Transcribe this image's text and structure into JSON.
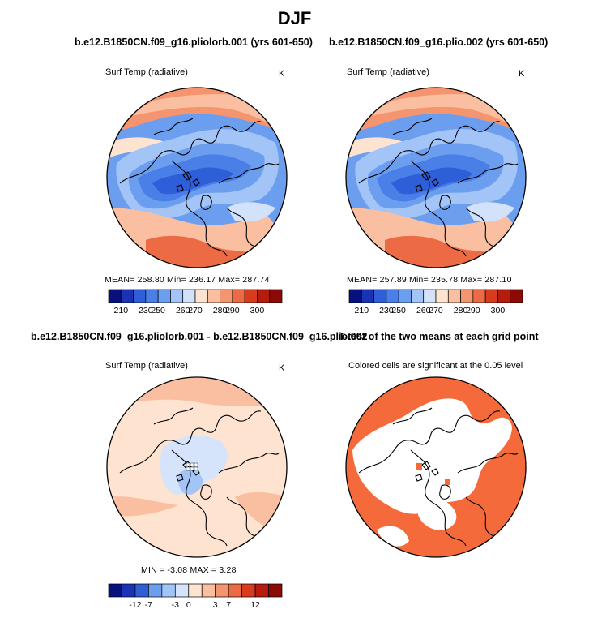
{
  "chart_data": {
    "type": "heatmap",
    "title": "DJF",
    "colors": {
      "warm_scale": [
        "#08107d",
        "#1834b4",
        "#2f5fd8",
        "#4a7fe8",
        "#6c9ef0",
        "#a2c4f6",
        "#d2e2fb",
        "#fde3d0",
        "#f9bfa0",
        "#f59570",
        "#ec6a44",
        "#d93b1f",
        "#b51c0e",
        "#8b0a05"
      ],
      "diff_scale": [
        "#08107d",
        "#1834b4",
        "#2f5fd8",
        "#6c9ef0",
        "#a2c4f6",
        "#d6e4fb",
        "#fde3d0",
        "#f9bfa0",
        "#f59570",
        "#ec6a44",
        "#d93b1f",
        "#b51c0e",
        "#8b0a05"
      ],
      "significant": "#f56a3a",
      "coast": "#000000"
    },
    "panels": [
      {
        "title": "b.e12.B1850CN.f09_g16.pliolorb.001 (yrs 601-650)",
        "variable": "Surf Temp (radiative)",
        "units": "K",
        "stats_text": "MEAN= 258.80   Min= 236.17   Max= 287.74",
        "mean": 258.8,
        "min": 236.17,
        "max": 287.74,
        "colorbar_ticks": [
          "210",
          "230",
          "250",
          "260",
          "270",
          "280",
          "290",
          "300"
        ]
      },
      {
        "title": "b.e12.B1850CN.f09_g16.plio.002 (yrs 601-650)",
        "variable": "Surf Temp (radiative)",
        "units": "K",
        "stats_text": "MEAN= 257.89   Min= 235.78   Max= 287.10",
        "mean": 257.89,
        "min": 235.78,
        "max": 287.1,
        "colorbar_ticks": [
          "210",
          "230",
          "250",
          "260",
          "270",
          "280",
          "290",
          "300"
        ]
      },
      {
        "title": "b.e12.B1850CN.f09_g16.pliolorb.001 - b.e12.B1850CN.f09_g16.plio.002",
        "variable": "Surf Temp (radiative)",
        "units": "K",
        "stats_text": "MIN =   -3.08 MAX =    3.28",
        "min": -3.08,
        "max": 3.28,
        "colorbar_ticks": [
          "-12",
          "-7",
          "-3",
          "0",
          "3",
          "7",
          "12"
        ]
      },
      {
        "title": "T-test of the two means at each grid point",
        "variable": "Colored cells are significant at the 0.05 level",
        "significance_level": 0.05
      }
    ]
  }
}
